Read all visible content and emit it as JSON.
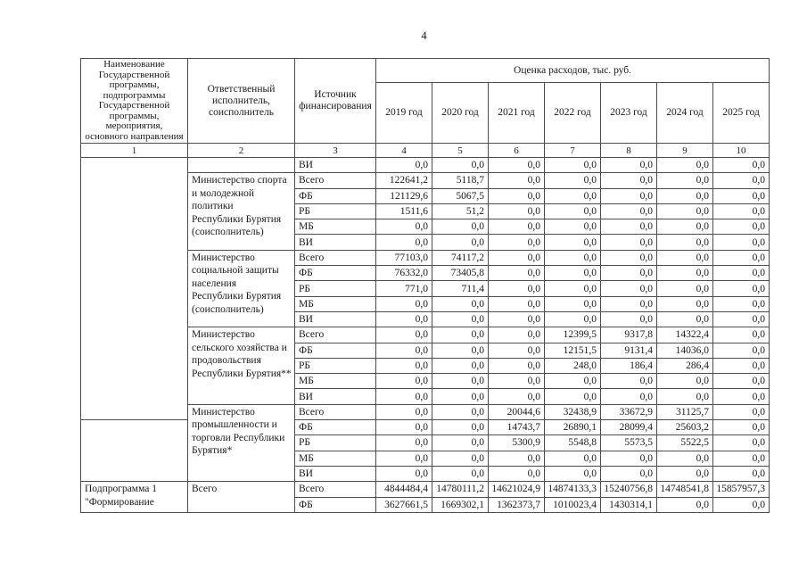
{
  "page": {
    "number": "4"
  },
  "table": {
    "header": {
      "col1": "Наименование\nГосударственной\nпрограммы,\nподпрограммы\nГосударственной\nпрограммы,\nмероприятия,\nосновного направления",
      "col2": "Ответственный\nисполнитель,\nсоисполнитель",
      "col3": "Источник\nфинансирования",
      "expenses_title": "Оценка расходов, тыс. руб.",
      "years": [
        "2019 год",
        "2020 год",
        "2021 год",
        "2022 год",
        "2023 год",
        "2024 год",
        "2025 год"
      ],
      "column_numbers": [
        "1",
        "2",
        "3",
        "4",
        "5",
        "6",
        "7",
        "8",
        "9",
        "10"
      ]
    },
    "col1_cells": [
      {
        "row": 0,
        "span": 17,
        "text": ""
      },
      {
        "row": 17,
        "span": 4,
        "text": ""
      },
      {
        "row": 21,
        "span": 2,
        "text": "Подпрограмма 1\n\"Формирование"
      }
    ],
    "col2_cells": [
      {
        "row": 0,
        "span": 1,
        "text": ""
      },
      {
        "row": 1,
        "span": 5,
        "text": "Министерство спорта\nи молодежной\nполитики\n Республики Бурятия\n(соисполнитель)"
      },
      {
        "row": 6,
        "span": 5,
        "text": "Министерство\nсоциальной защиты\nнаселения\nРеспублики Бурятия\n(соисполнитель)"
      },
      {
        "row": 11,
        "span": 5,
        "text": "Министерство\nсельского хозяйства и\nпродовольствия\nРеспублики Бурятия**"
      },
      {
        "row": 16,
        "span": 5,
        "text": "Министерство\nпромышленности и\nторговли Республики\nБурятия*"
      },
      {
        "row": 21,
        "span": 2,
        "text": "Всего"
      }
    ],
    "rows": [
      {
        "source": "ВИ",
        "values": [
          "0,0",
          "0,0",
          "0,0",
          "0,0",
          "0,0",
          "0,0",
          "0,0"
        ]
      },
      {
        "source": "Всего",
        "values": [
          "122641,2",
          "5118,7",
          "0,0",
          "0,0",
          "0,0",
          "0,0",
          "0,0"
        ]
      },
      {
        "source": "ФБ",
        "values": [
          "121129,6",
          "5067,5",
          "0,0",
          "0,0",
          "0,0",
          "0,0",
          "0,0"
        ]
      },
      {
        "source": "РБ",
        "values": [
          "1511,6",
          "51,2",
          "0,0",
          "0,0",
          "0,0",
          "0,0",
          "0,0"
        ]
      },
      {
        "source": "МБ",
        "values": [
          "0,0",
          "0,0",
          "0,0",
          "0,0",
          "0,0",
          "0,0",
          "0,0"
        ]
      },
      {
        "source": "ВИ",
        "values": [
          "0,0",
          "0,0",
          "0,0",
          "0,0",
          "0,0",
          "0,0",
          "0,0"
        ]
      },
      {
        "source": "Всего",
        "values": [
          "77103,0",
          "74117,2",
          "0,0",
          "0,0",
          "0,0",
          "0,0",
          "0,0"
        ]
      },
      {
        "source": "ФБ",
        "values": [
          "76332,0",
          "73405,8",
          "0,0",
          "0,0",
          "0,0",
          "0,0",
          "0,0"
        ]
      },
      {
        "source": "РБ",
        "values": [
          "771,0",
          "711,4",
          "0,0",
          "0,0",
          "0,0",
          "0,0",
          "0,0"
        ]
      },
      {
        "source": "МБ",
        "values": [
          "0,0",
          "0,0",
          "0,0",
          "0,0",
          "0,0",
          "0,0",
          "0,0"
        ]
      },
      {
        "source": "ВИ",
        "values": [
          "0,0",
          "0,0",
          "0,0",
          "0,0",
          "0,0",
          "0,0",
          "0,0"
        ]
      },
      {
        "source": "Всего",
        "values": [
          "0,0",
          "0,0",
          "0,0",
          "12399,5",
          "9317,8",
          "14322,4",
          "0,0"
        ]
      },
      {
        "source": "ФБ",
        "values": [
          "0,0",
          "0,0",
          "0,0",
          "12151,5",
          "9131,4",
          "14036,0",
          "0,0"
        ]
      },
      {
        "source": "РБ",
        "values": [
          "0,0",
          "0,0",
          "0,0",
          "248,0",
          "186,4",
          "286,4",
          "0,0"
        ]
      },
      {
        "source": "МБ",
        "values": [
          "0,0",
          "0,0",
          "0,0",
          "0,0",
          "0,0",
          "0,0",
          "0,0"
        ]
      },
      {
        "source": "ВИ",
        "values": [
          "0,0",
          "0,0",
          "0,0",
          "0,0",
          "0,0",
          "0,0",
          "0,0"
        ]
      },
      {
        "source": "Всего",
        "values": [
          "0,0",
          "0,0",
          "20044,6",
          "32438,9",
          "33672,9",
          "31125,7",
          "0,0"
        ]
      },
      {
        "source": "ФБ",
        "values": [
          "0,0",
          "0,0",
          "14743,7",
          "26890,1",
          "28099,4",
          "25603,2",
          "0,0"
        ]
      },
      {
        "source": "РБ",
        "values": [
          "0,0",
          "0,0",
          "5300,9",
          "5548,8",
          "5573,5",
          "5522,5",
          "0,0"
        ]
      },
      {
        "source": "МБ",
        "values": [
          "0,0",
          "0,0",
          "0,0",
          "0,0",
          "0,0",
          "0,0",
          "0,0"
        ]
      },
      {
        "source": "ВИ",
        "values": [
          "0,0",
          "0,0",
          "0,0",
          "0,0",
          "0,0",
          "0,0",
          "0,0"
        ]
      },
      {
        "source": "Всего",
        "values": [
          "4844484,4",
          "14780111,2",
          "14621024,9",
          "14874133,3",
          "15240756,8",
          "14748541,8",
          "15857957,3"
        ]
      },
      {
        "source": "ФБ",
        "values": [
          "3627661,5",
          "1669302,1",
          "1362373,7",
          "1010023,4",
          "1430314,1",
          "0,0",
          "0,0"
        ]
      }
    ]
  },
  "colors": {
    "background": "#ffffff",
    "text": "#1a1a1a",
    "border": "#4d4d4d"
  }
}
